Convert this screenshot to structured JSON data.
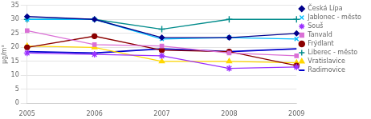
{
  "chart_data": {
    "type": "line",
    "ylabel": "µg/m³",
    "categories": [
      "2005",
      "2006",
      "2007",
      "2008",
      "2009"
    ],
    "series": [
      {
        "name": "Česká Lípa",
        "color": "#00008B",
        "marker": "diamond",
        "values": [
          31,
          30,
          23.5,
          23.5,
          25
        ]
      },
      {
        "name": "Jablonec - město",
        "color": "#00BFFF",
        "marker": "x",
        "values": [
          30,
          30,
          23,
          23.5,
          23
        ]
      },
      {
        "name": "Souš",
        "color": "#9B30FF",
        "marker": "star",
        "values": [
          18,
          17.5,
          17,
          12.5,
          13
        ]
      },
      {
        "name": "Tanvald",
        "color": "#DA70D6",
        "marker": "square",
        "values": [
          26,
          21,
          20.5,
          18,
          17
        ]
      },
      {
        "name": "Frýdlant",
        "color": "#8B0000",
        "marker": "circle",
        "values": [
          20,
          24,
          19,
          18.5,
          13.5
        ]
      },
      {
        "name": "Liberec - město",
        "color": "#008B8B",
        "marker": "plus",
        "values": [
          30,
          30,
          26.5,
          30,
          30
        ]
      },
      {
        "name": "Vratislavice",
        "color": "#FFD700",
        "marker": "triangle",
        "values": [
          20.5,
          20,
          15,
          15,
          14.5
        ]
      },
      {
        "name": "Radimovice",
        "color": "#0000CD",
        "marker": "none",
        "values": [
          18.5,
          18,
          19.5,
          18.5,
          19.5
        ]
      }
    ],
    "ylim": [
      0,
      35
    ],
    "yticks": [
      0,
      5,
      10,
      15,
      20,
      25,
      30,
      35
    ],
    "grid": true,
    "legend": "right"
  }
}
